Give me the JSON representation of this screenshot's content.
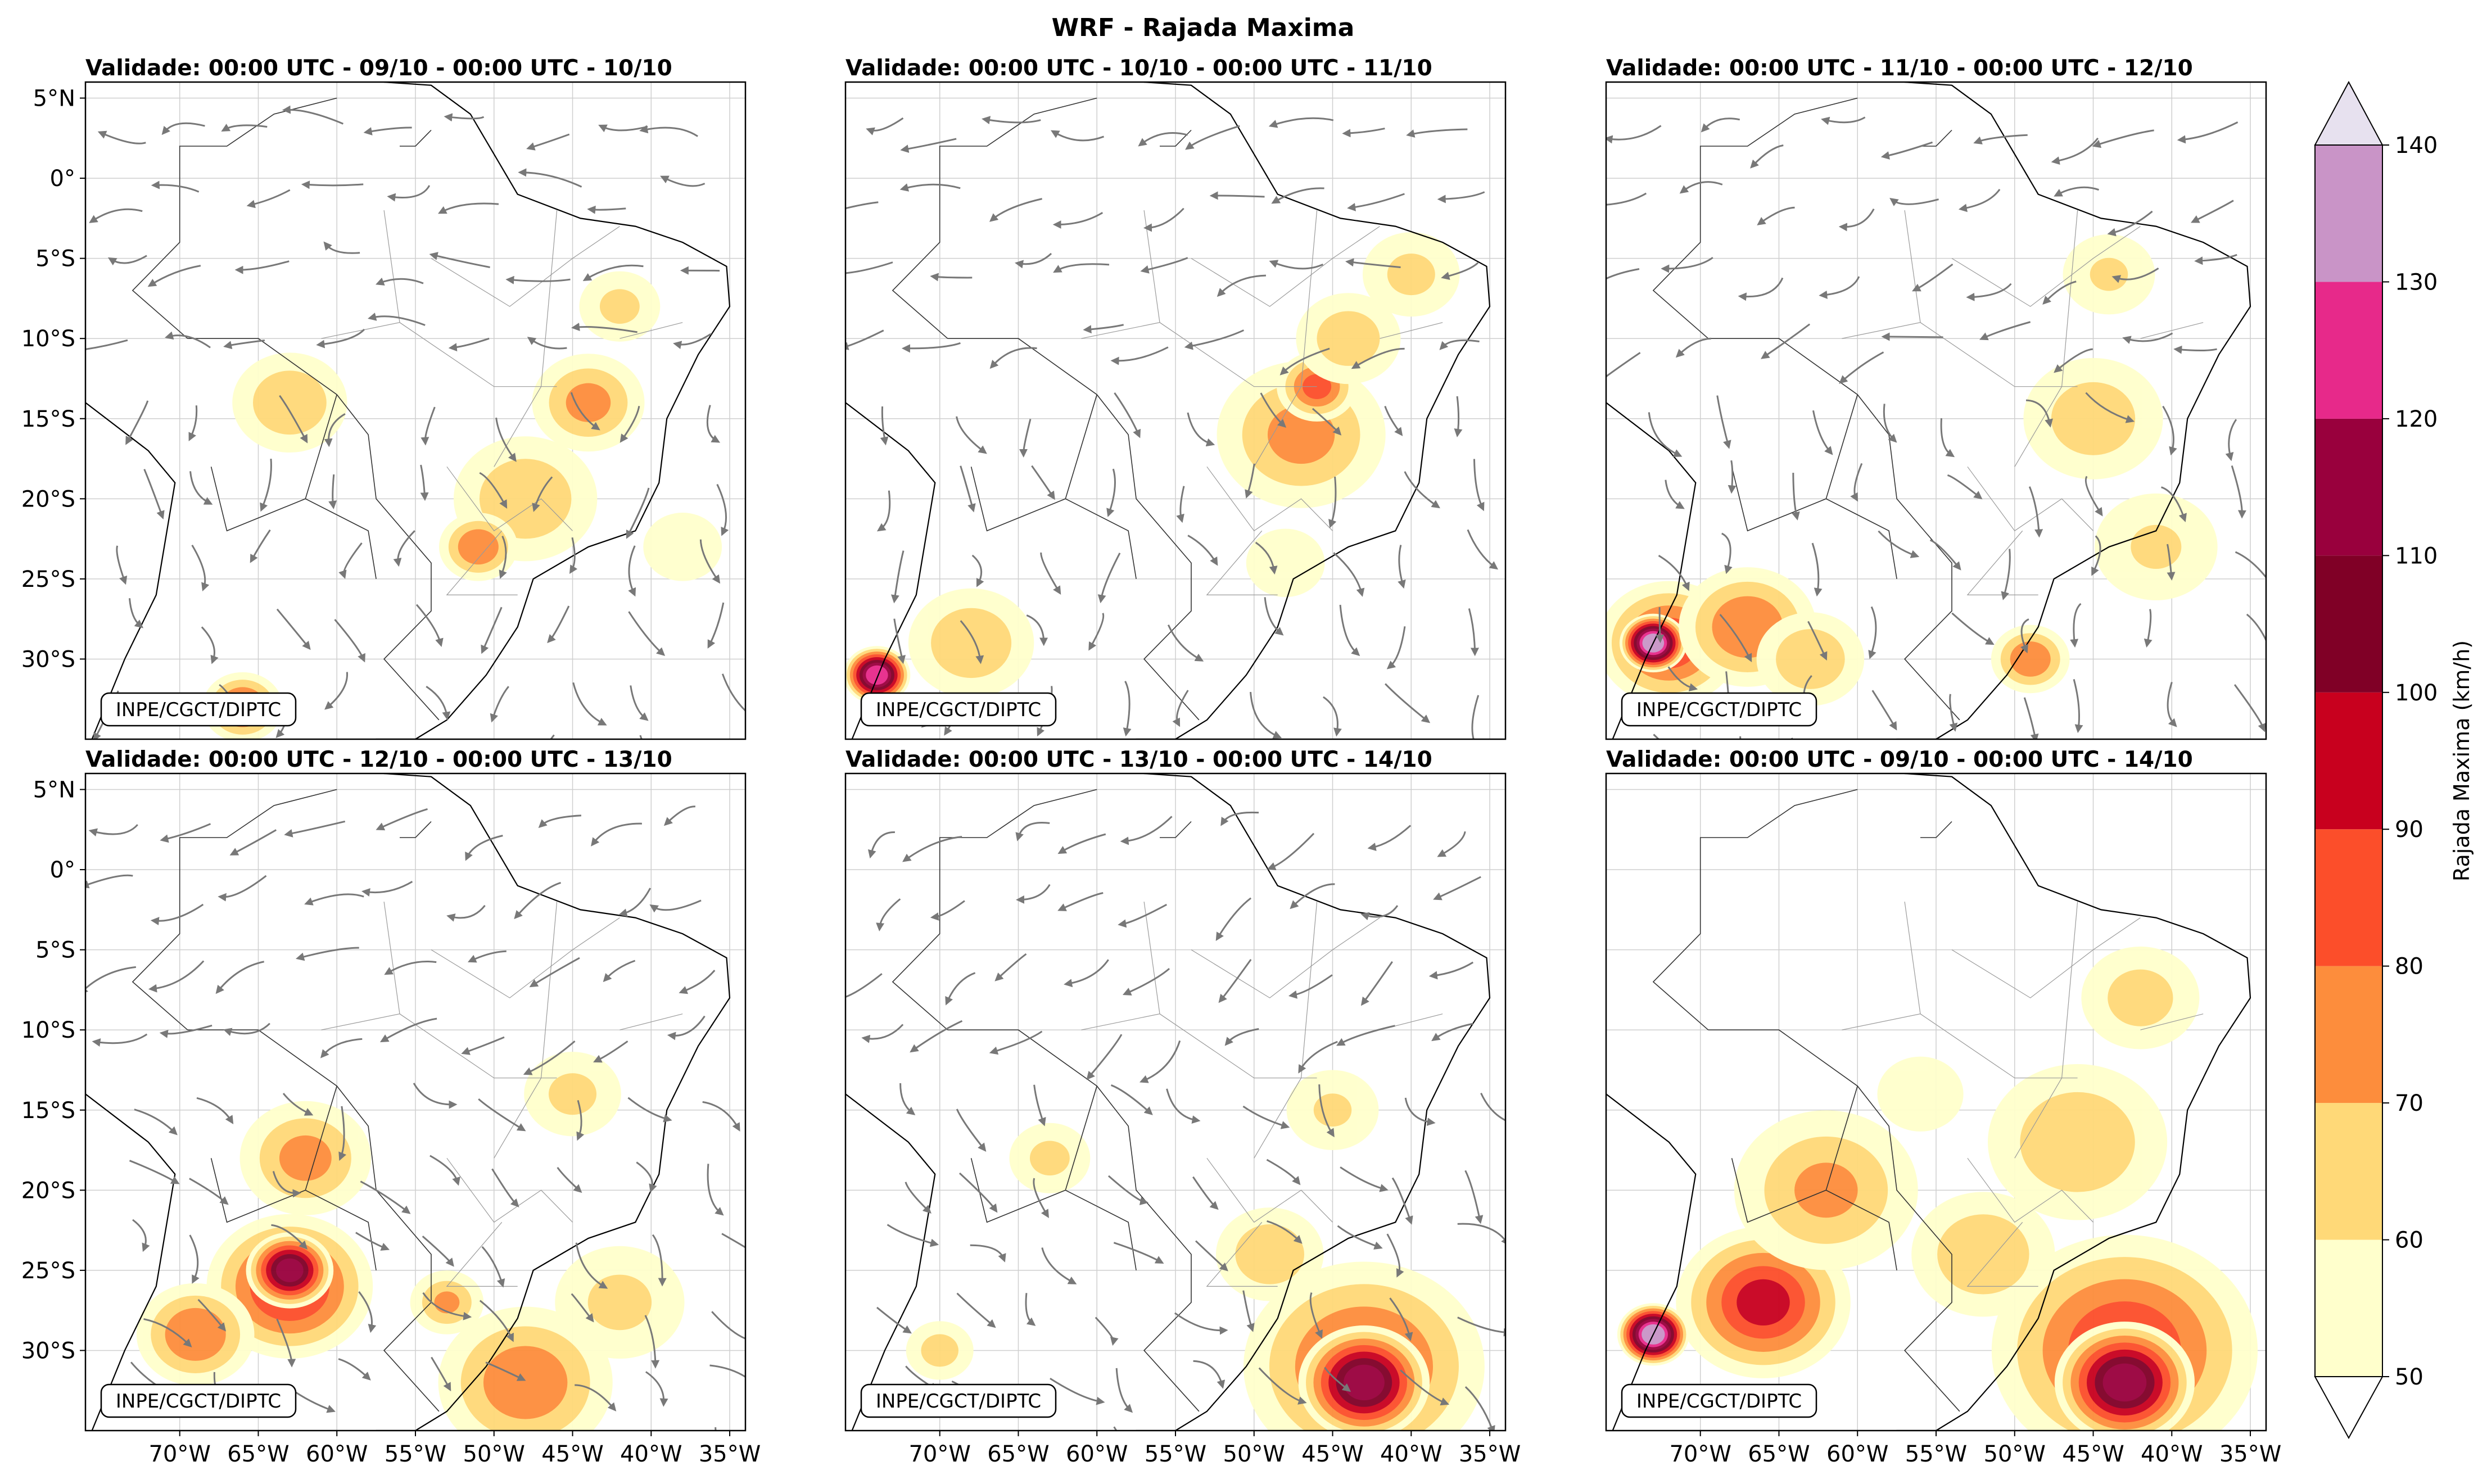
{
  "chart_data": {
    "type": "heatmap",
    "title": "WRF - Rajada Maxima",
    "credit": "INPE/CGCT/DIPTC",
    "xlim": [
      -76,
      -34
    ],
    "ylim": [
      -35,
      6
    ],
    "lon_ticks": [
      -70,
      -65,
      -60,
      -55,
      -50,
      -45,
      -40,
      -35
    ],
    "lon_tick_labels": [
      "70°W",
      "65°W",
      "60°W",
      "55°W",
      "50°W",
      "45°W",
      "40°W",
      "35°W"
    ],
    "lat_ticks": [
      5,
      0,
      -5,
      -10,
      -15,
      -20,
      -25,
      -30
    ],
    "lat_tick_labels": [
      "5°N",
      "0°",
      "5°S",
      "10°S",
      "15°S",
      "20°S",
      "25°S",
      "30°S"
    ],
    "panels": [
      {
        "title": "Validade: 00:00 UTC - 09/10 - 00:00 UTC - 10/10",
        "streamlines": true,
        "blobs": [
          {
            "lon": -63,
            "lat": -14,
            "r": 3.2,
            "v": 68
          },
          {
            "lon": -48,
            "lat": -20,
            "r": 4,
            "v": 68
          },
          {
            "lon": -44,
            "lat": -14,
            "r": 3,
            "v": 72
          },
          {
            "lon": -42,
            "lat": -8,
            "r": 2.5,
            "v": 62
          },
          {
            "lon": -51,
            "lat": -23,
            "r": 2,
            "v": 78
          },
          {
            "lon": -38,
            "lat": -23,
            "r": 3,
            "v": 56
          },
          {
            "lon": -66,
            "lat": -33,
            "r": 2,
            "v": 82
          }
        ]
      },
      {
        "title": "Validade: 00:00 UTC - 10/10 - 00:00 UTC - 11/10",
        "streamlines": true,
        "blobs": [
          {
            "lon": -47,
            "lat": -16,
            "r": 4.5,
            "v": 72
          },
          {
            "lon": -46,
            "lat": -13,
            "r": 2,
            "v": 82
          },
          {
            "lon": -44,
            "lat": -10,
            "r": 3,
            "v": 66
          },
          {
            "lon": -40,
            "lat": -6,
            "r": 3,
            "v": 62
          },
          {
            "lon": -68,
            "lat": -29,
            "r": 3.5,
            "v": 68
          },
          {
            "lon": -74,
            "lat": -31,
            "r": 1.5,
            "v": 125
          },
          {
            "lon": -48,
            "lat": -24,
            "r": 3,
            "v": 56
          }
        ]
      },
      {
        "title": "Validade: 00:00 UTC - 11/10 - 00:00 UTC - 12/10",
        "streamlines": true,
        "blobs": [
          {
            "lon": -72,
            "lat": -29,
            "r": 3.5,
            "v": 85
          },
          {
            "lon": -73,
            "lat": -29,
            "r": 1.5,
            "v": 135
          },
          {
            "lon": -67,
            "lat": -28,
            "r": 3.5,
            "v": 78
          },
          {
            "lon": -63,
            "lat": -30,
            "r": 3,
            "v": 68
          },
          {
            "lon": -45,
            "lat": -15,
            "r": 4,
            "v": 66
          },
          {
            "lon": -41,
            "lat": -23,
            "r": 4,
            "v": 60
          },
          {
            "lon": -49,
            "lat": -30,
            "r": 2,
            "v": 78
          },
          {
            "lon": -44,
            "lat": -6,
            "r": 3,
            "v": 60
          }
        ]
      },
      {
        "title": "Validade: 00:00 UTC - 12/10 - 00:00 UTC - 13/10",
        "streamlines": true,
        "blobs": [
          {
            "lon": -63,
            "lat": -26,
            "r": 4,
            "v": 90
          },
          {
            "lon": -63,
            "lat": -25,
            "r": 2,
            "v": 112
          },
          {
            "lon": -62,
            "lat": -18,
            "r": 3.5,
            "v": 72
          },
          {
            "lon": -69,
            "lat": -29,
            "r": 3,
            "v": 78
          },
          {
            "lon": -48,
            "lat": -32,
            "r": 4.5,
            "v": 76
          },
          {
            "lon": -42,
            "lat": -27,
            "r": 4,
            "v": 62
          },
          {
            "lon": -45,
            "lat": -14,
            "r": 3,
            "v": 62
          },
          {
            "lon": -53,
            "lat": -27,
            "r": 2,
            "v": 70
          }
        ]
      },
      {
        "title": "Validade: 00:00 UTC - 13/10 - 00:00 UTC - 14/10",
        "streamlines": true,
        "blobs": [
          {
            "lon": -43,
            "lat": -31,
            "r": 6,
            "v": 82
          },
          {
            "lon": -43,
            "lat": -32,
            "r": 3,
            "v": 112
          },
          {
            "lon": -49,
            "lat": -24,
            "r": 3,
            "v": 68
          },
          {
            "lon": -63,
            "lat": -18,
            "r": 2.5,
            "v": 62
          },
          {
            "lon": -45,
            "lat": -15,
            "r": 3,
            "v": 60
          },
          {
            "lon": -70,
            "lat": -30,
            "r": 2,
            "v": 64
          }
        ]
      },
      {
        "title": "Validade: 00:00 UTC - 09/10 - 00:00 UTC - 14/10",
        "streamlines": false,
        "blobs": [
          {
            "lon": -43,
            "lat": -30,
            "r": 6.5,
            "v": 86
          },
          {
            "lon": -43,
            "lat": -32,
            "r": 3.2,
            "v": 112
          },
          {
            "lon": -66,
            "lat": -27,
            "r": 4.2,
            "v": 90
          },
          {
            "lon": -73,
            "lat": -29,
            "r": 1.6,
            "v": 135
          },
          {
            "lon": -62,
            "lat": -20,
            "r": 5,
            "v": 70
          },
          {
            "lon": -46,
            "lat": -17,
            "r": 5,
            "v": 68
          },
          {
            "lon": -52,
            "lat": -24,
            "r": 4,
            "v": 68
          },
          {
            "lon": -42,
            "lat": -8,
            "r": 3.5,
            "v": 64
          },
          {
            "lon": -56,
            "lat": -14,
            "r": 3,
            "v": 58
          }
        ]
      }
    ],
    "colorbar": {
      "label": "Rajada Maxima (km/h)",
      "levels": [
        50,
        60,
        70,
        80,
        90,
        100,
        110,
        120,
        130,
        140
      ],
      "level_labels": [
        "50",
        "60",
        "70",
        "80",
        "90",
        "100",
        "110",
        "120",
        "130",
        "140"
      ],
      "colors": [
        "#ffffcc",
        "#ffd978",
        "#fd8d3c",
        "#fc4e2a",
        "#c8001e",
        "#800026",
        "#99003d",
        "#e7298a",
        "#c994c7"
      ],
      "extend_low": "#ffffff",
      "extend_high": "#e7e1ef"
    },
    "streamline_color": "#787878"
  }
}
